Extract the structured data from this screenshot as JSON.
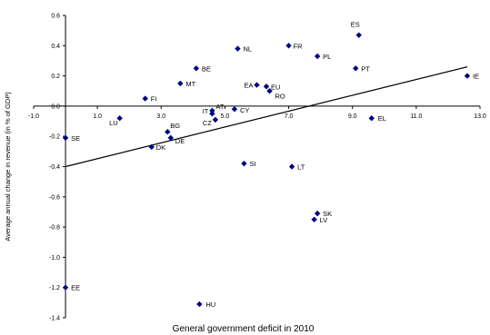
{
  "chart_data": {
    "type": "scatter",
    "xlabel": "General government deficit in 2010",
    "ylabel": "Average annual change in revenue (in % of GDP)",
    "xlim": [
      -1.0,
      13.0
    ],
    "ylim": [
      -1.4,
      0.6
    ],
    "x_ticks": [
      "-1.0",
      "1.0",
      "3.0",
      "5.0",
      "7.0",
      "9.0",
      "11.0",
      "13.0"
    ],
    "y_ticks": [
      "0.6",
      "0.4",
      "0.2",
      "0.0",
      "-0.2",
      "-0.4",
      "-0.6",
      "-0.8",
      "-1.0",
      "-1.2",
      "-1.4"
    ],
    "marker_color": "#000080",
    "grid": false,
    "legend": "none",
    "points": [
      {
        "label": "ES",
        "x": 9.2,
        "y": 0.47
      },
      {
        "label": "FR",
        "x": 7.0,
        "y": 0.4
      },
      {
        "label": "NL",
        "x": 5.4,
        "y": 0.38
      },
      {
        "label": "PL",
        "x": 7.9,
        "y": 0.33
      },
      {
        "label": "BE",
        "x": 4.1,
        "y": 0.25
      },
      {
        "label": "PT",
        "x": 9.1,
        "y": 0.25
      },
      {
        "label": "IE",
        "x": 12.6,
        "y": 0.2
      },
      {
        "label": "MT",
        "x": 3.6,
        "y": 0.15
      },
      {
        "label": "EA",
        "x": 6.0,
        "y": 0.14
      },
      {
        "label": "EU",
        "x": 6.3,
        "y": 0.13
      },
      {
        "label": "RO",
        "x": 6.4,
        "y": 0.1
      },
      {
        "label": "FI",
        "x": 2.5,
        "y": 0.05
      },
      {
        "label": "AT",
        "x": 4.6,
        "y": -0.03
      },
      {
        "label": "IT",
        "x": 4.6,
        "y": -0.05
      },
      {
        "label": "CY",
        "x": 5.3,
        "y": -0.02
      },
      {
        "label": "CZ",
        "x": 4.7,
        "y": -0.09
      },
      {
        "label": "LU",
        "x": 1.7,
        "y": -0.08
      },
      {
        "label": "EL",
        "x": 9.6,
        "y": -0.08
      },
      {
        "label": "SE",
        "x": 0.0,
        "y": -0.21
      },
      {
        "label": "BG",
        "x": 3.2,
        "y": -0.17
      },
      {
        "label": "DE",
        "x": 3.3,
        "y": -0.21
      },
      {
        "label": "DK",
        "x": 2.7,
        "y": -0.27
      },
      {
        "label": "SI",
        "x": 5.6,
        "y": -0.38
      },
      {
        "label": "LT",
        "x": 7.1,
        "y": -0.4
      },
      {
        "label": "SK",
        "x": 7.9,
        "y": -0.71
      },
      {
        "label": "LV",
        "x": 7.8,
        "y": -0.75
      },
      {
        "label": "EE",
        "x": 0.0,
        "y": -1.2
      },
      {
        "label": "HU",
        "x": 4.2,
        "y": -1.31
      }
    ],
    "trendline": {
      "x": [
        0.0,
        12.6
      ],
      "y": [
        -0.4,
        0.26
      ]
    }
  }
}
